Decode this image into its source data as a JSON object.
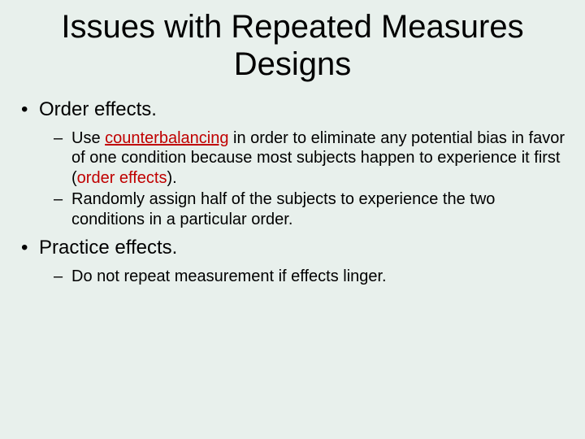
{
  "colors": {
    "background": "#e8f0ec",
    "text": "#000000",
    "highlight": "#c00000"
  },
  "typography": {
    "title_fontsize": 40,
    "level1_fontsize": 24,
    "level2_fontsize": 20,
    "font_family": "Arial"
  },
  "title": "Issues with Repeated Measures Designs",
  "bullets": {
    "b1": {
      "label": "Order effects.",
      "sub": {
        "s1_pre": "Use ",
        "s1_term": "counterbalancing",
        "s1_mid": " in order to eliminate any potential bias in favor of one condition because most subjects happen to experience it first (",
        "s1_term2": "order effects",
        "s1_post": ").",
        "s2": "Randomly assign half of the subjects to experience the two conditions in a particular order."
      }
    },
    "b2": {
      "label": "Practice effects.",
      "sub": {
        "s1": "Do not repeat measurement if effects linger."
      }
    }
  }
}
